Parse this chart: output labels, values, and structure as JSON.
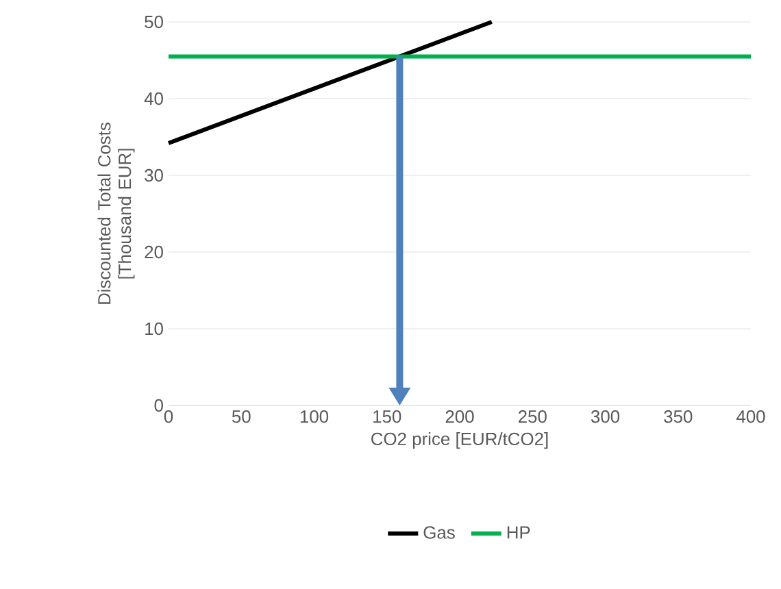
{
  "chart_data": {
    "type": "line",
    "xlabel": "CO2 price [EUR/tCO2]",
    "ylabel": "Discounted Total Costs [Thousand EUR]",
    "xlim": [
      0,
      400
    ],
    "xticks": [
      0,
      50,
      100,
      150,
      200,
      250,
      300,
      350,
      400
    ],
    "ylim": [
      0,
      50
    ],
    "yticks": [
      0,
      10,
      20,
      30,
      40,
      50
    ],
    "grid": "y",
    "legend": "bottom",
    "marker": "none",
    "series": [
      {
        "name": "Gas",
        "color": "#000000",
        "x": [
          0,
          222
        ],
        "values": [
          34.2,
          50
        ]
      },
      {
        "name": "HP",
        "color": "#00b050",
        "x": [
          0,
          400
        ],
        "values": [
          45.5,
          45.5
        ]
      }
    ]
  }
}
